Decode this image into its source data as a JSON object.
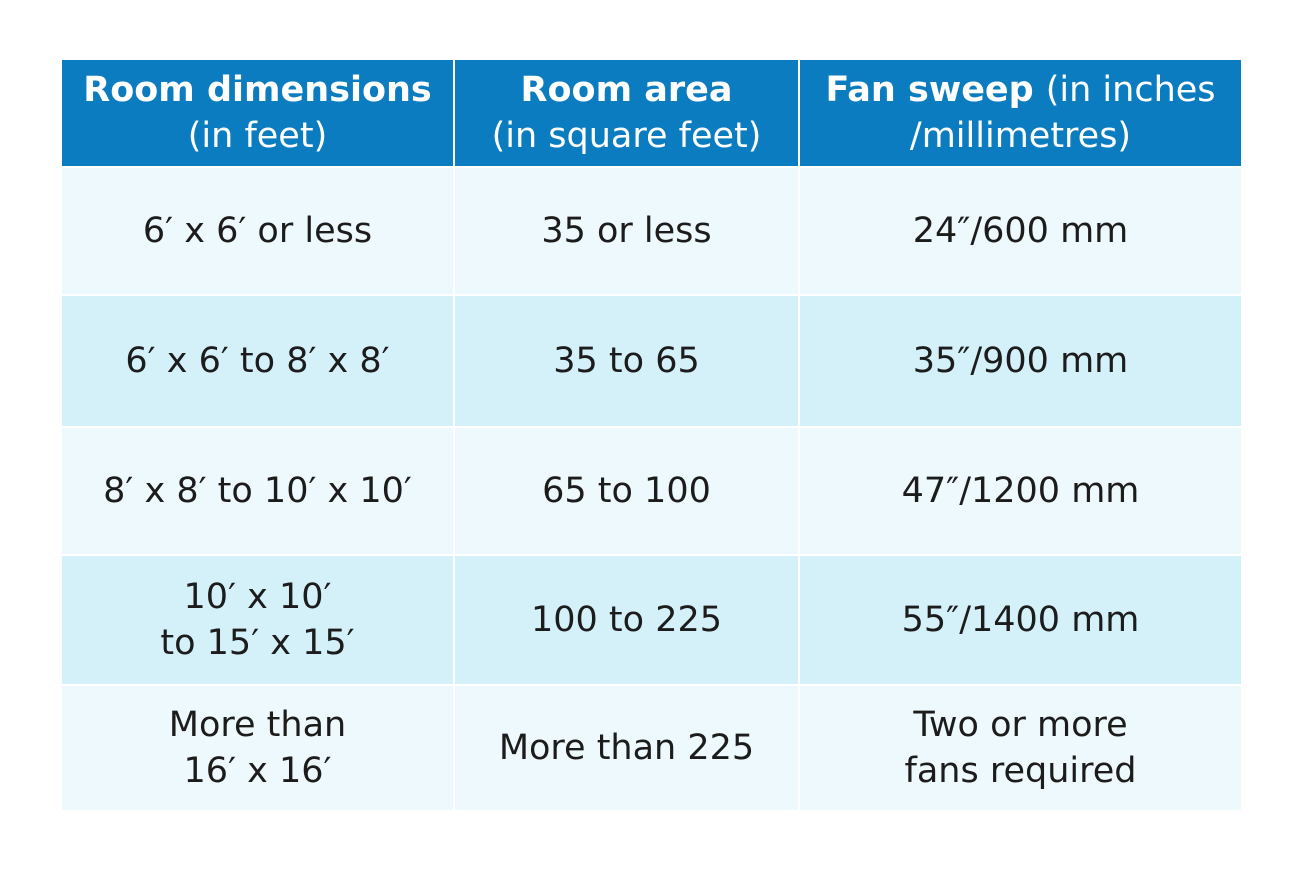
{
  "table": {
    "header": [
      [
        [
          {
            "text": "Room dimensions",
            "bold": true
          }
        ],
        [
          {
            "text": "(in feet)"
          }
        ]
      ],
      [
        [
          {
            "text": "Room area",
            "bold": true
          }
        ],
        [
          {
            "text": "(in square feet)"
          }
        ]
      ],
      [
        [
          {
            "text": "Fan sweep",
            "bold": true
          },
          {
            "text": "(in inches"
          }
        ],
        [
          {
            "text": "/millimetres)"
          }
        ]
      ]
    ],
    "rows": [
      [
        [
          "6′ x 6′ or less"
        ],
        [
          "35 or less"
        ],
        [
          "24″/600 mm"
        ]
      ],
      [
        [
          "6′ x 6′ to 8′ x 8′"
        ],
        [
          "35 to 65"
        ],
        [
          "35″/900 mm"
        ]
      ],
      [
        [
          "8′ x 8′ to 10′ x 10′"
        ],
        [
          "65 to 100"
        ],
        [
          "47″/1200 mm"
        ]
      ],
      [
        [
          "10′ x 10′",
          "to 15′ x 15′"
        ],
        [
          "100 to 225"
        ],
        [
          "55″/1400 mm"
        ]
      ],
      [
        [
          "More than",
          "16′ x 16′"
        ],
        [
          "More than 225"
        ],
        [
          "Two or more",
          "fans required"
        ]
      ]
    ]
  }
}
